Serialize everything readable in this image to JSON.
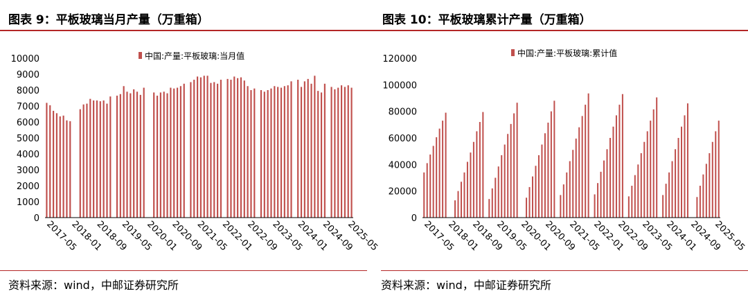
{
  "panels": [
    {
      "title": "图表 9：平板玻璃当月产量（万重箱）",
      "source": "资料来源：wind，中邮证券研究所"
    },
    {
      "title": "图表 10：平板玻璃累计产量（万重箱）",
      "source": "资料来源：wind，中邮证券研究所"
    }
  ],
  "colors": {
    "bar": "#c0504d",
    "rule": "#b42626",
    "axis": "#000000"
  },
  "chart_data": [
    {
      "type": "bar",
      "title": "",
      "legend": [
        "中国:产量:平板玻璃:当月值"
      ],
      "series": [
        {
          "name": "中国:产量:平板玻璃:当月值",
          "values": [
            7200,
            7050,
            6700,
            6550,
            6350,
            6400,
            6100,
            6050,
            null,
            0,
            6800,
            7100,
            7150,
            7450,
            7350,
            7350,
            7300,
            7350,
            7150,
            7600,
            null,
            7650,
            7750,
            8250,
            7900,
            7800,
            8050,
            7900,
            7700,
            8150,
            null,
            0,
            7850,
            7650,
            7850,
            7900,
            7800,
            8150,
            8100,
            8150,
            8250,
            8400,
            null,
            8500,
            8650,
            8850,
            8800,
            8900,
            8900,
            8450,
            8500,
            8400,
            8650,
            null,
            8700,
            8650,
            8850,
            8750,
            8800,
            8600,
            8250,
            8000,
            8100,
            null,
            8000,
            7900,
            8000,
            8100,
            8250,
            8200,
            8150,
            8250,
            8300,
            8550,
            null,
            8650,
            8200,
            8550,
            8700,
            8400,
            8900,
            7950,
            7850,
            8400,
            null,
            8200,
            8050,
            8150,
            8300,
            8200,
            8300,
            8150
          ]
        }
      ],
      "x_tick_labels": [
        "2017-05",
        "2018-01",
        "2018-09",
        "2019-05",
        "2020-01",
        "2020-09",
        "2021-05",
        "2022-01",
        "2022-09",
        "2023-05",
        "2024-01",
        "2024-09",
        "2025-05"
      ],
      "y_tick_labels": [
        "0",
        "1000",
        "2000",
        "3000",
        "4000",
        "5000",
        "6000",
        "7000",
        "8000",
        "9000",
        "10000"
      ],
      "ylim": [
        0,
        10000
      ],
      "legend_position": "top"
    },
    {
      "type": "bar",
      "title": "",
      "legend": [
        "中国:产量:平板玻璃:累计值"
      ],
      "series": [
        {
          "name": "中国:产量:平板玻璃:累计值",
          "values": [
            34000,
            41000,
            47500,
            54000,
            60500,
            67000,
            73000,
            79000,
            null,
            null,
            13000,
            20000,
            27000,
            34000,
            42000,
            49000,
            57000,
            65000,
            72000,
            79500,
            null,
            14000,
            22000,
            30000,
            38500,
            47000,
            55000,
            63000,
            70500,
            78500,
            86500,
            null,
            null,
            15000,
            23000,
            31000,
            39000,
            47000,
            55000,
            63500,
            71500,
            80000,
            88000,
            null,
            17000,
            25000,
            34000,
            42500,
            51000,
            59500,
            68000,
            76500,
            85000,
            93500,
            null,
            17500,
            26000,
            34500,
            43000,
            51500,
            60000,
            68500,
            77000,
            85000,
            93000,
            null,
            16000,
            24000,
            32000,
            40000,
            48500,
            57000,
            65000,
            73000,
            81500,
            90500,
            null,
            17000,
            25500,
            34000,
            42500,
            51500,
            60000,
            68500,
            77000,
            86000,
            null,
            null,
            15500,
            24000,
            32500,
            40500,
            48500,
            57000,
            65000,
            73000
          ]
        }
      ],
      "x_tick_labels": [
        "2017-05",
        "2018-01",
        "2018-09",
        "2019-05",
        "2020-01",
        "2020-09",
        "2021-05",
        "2022-01",
        "2022-09",
        "2023-05",
        "2024-01",
        "2024-09",
        "2025-05"
      ],
      "y_tick_labels": [
        "0",
        "20000",
        "40000",
        "60000",
        "80000",
        "100000",
        "120000"
      ],
      "ylim": [
        0,
        120000
      ],
      "legend_position": "top"
    }
  ]
}
